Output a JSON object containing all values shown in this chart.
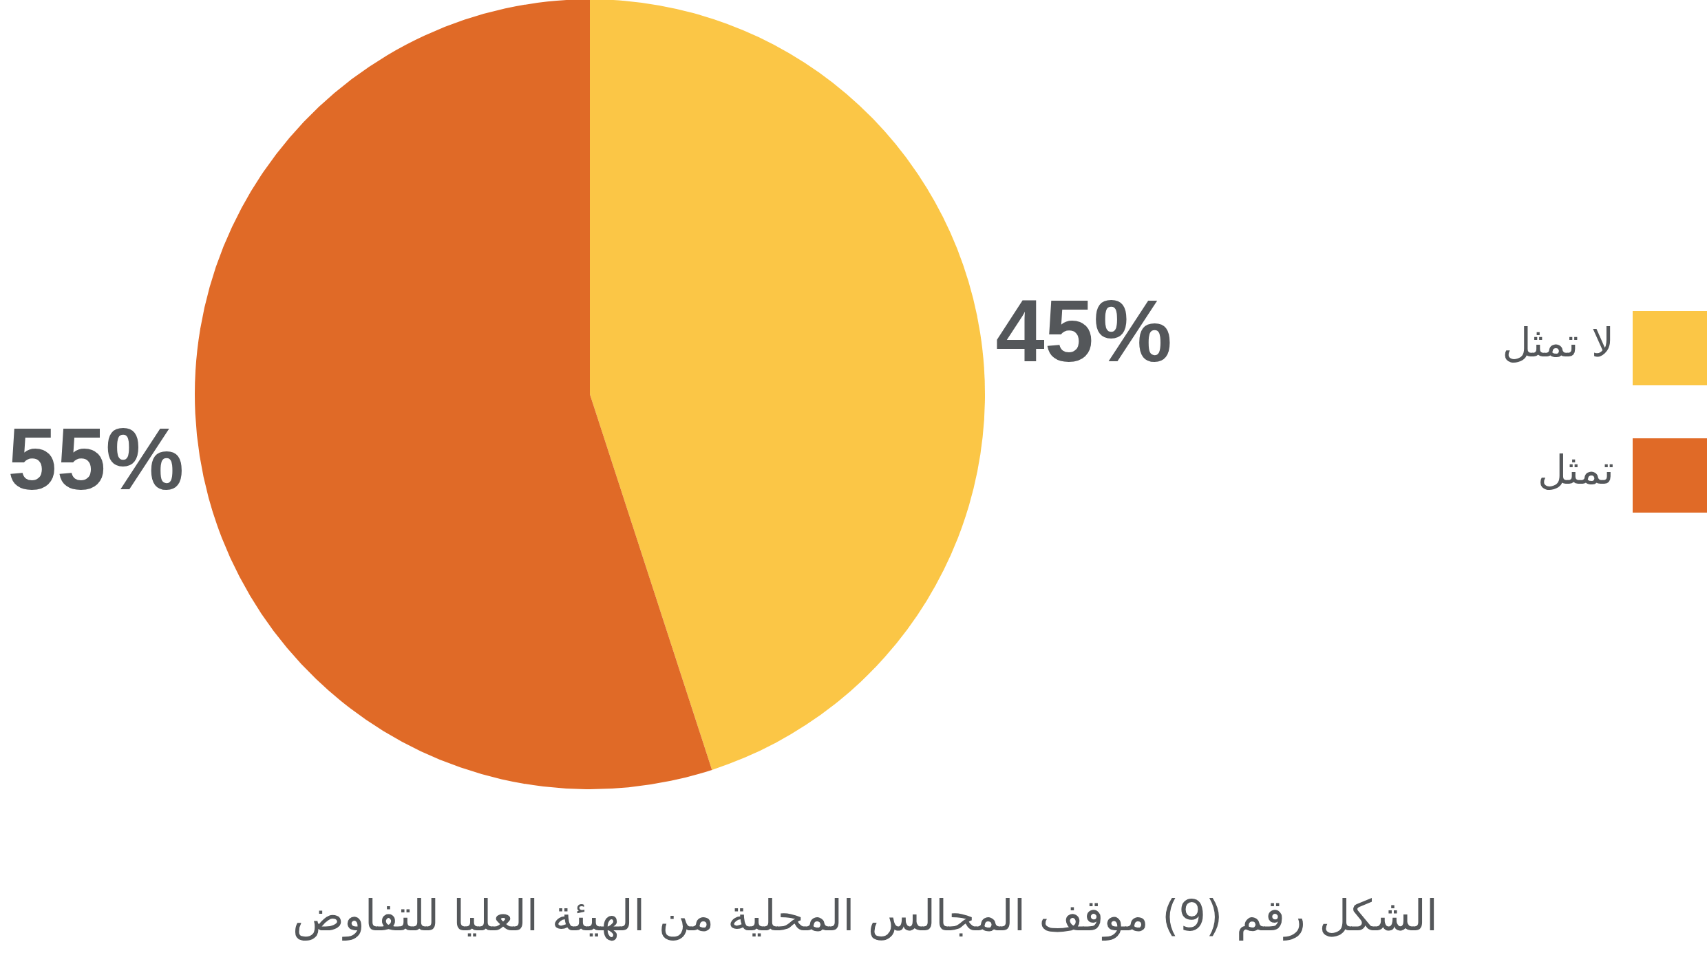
{
  "chart_data": {
    "type": "pie",
    "categories": [
      "لا تمثل",
      "تمثل"
    ],
    "values": [
      45,
      55
    ],
    "colors": [
      "#fbc646",
      "#e06a27"
    ],
    "value_labels": [
      "45%",
      "55%"
    ],
    "legend": "right",
    "annotations": [
      "الشكل رقم (9) موقف المجالس المحلية من الهيئة العليا للتفاوض"
    ]
  }
}
